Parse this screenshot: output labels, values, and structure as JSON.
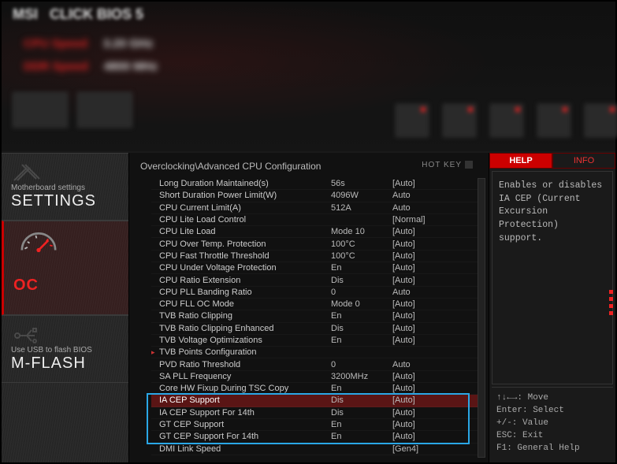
{
  "breadcrumb": "Overclocking\\Advanced CPU Configuration",
  "hotkey_label": "HOT KEY",
  "leftnav": {
    "settings": {
      "sub": "Motherboard settings",
      "title": "SETTINGS"
    },
    "oc": {
      "title": "OC"
    },
    "mflash": {
      "sub": "Use USB to flash BIOS",
      "title": "M-FLASH"
    }
  },
  "rows": [
    {
      "name": "Long Duration Maintained(s)",
      "val": "56s",
      "opt": "[Auto]",
      "arrow": false
    },
    {
      "name": "Short Duration Power Limit(W)",
      "val": "4096W",
      "opt": "Auto",
      "arrow": false
    },
    {
      "name": "CPU Current Limit(A)",
      "val": "512A",
      "opt": "Auto",
      "arrow": false
    },
    {
      "name": "CPU Lite Load Control",
      "val": "",
      "opt": "[Normal]",
      "arrow": false
    },
    {
      "name": "CPU Lite Load",
      "val": "Mode 10",
      "opt": "[Auto]",
      "arrow": false
    },
    {
      "name": "CPU Over Temp. Protection",
      "val": "100°C",
      "opt": "[Auto]",
      "arrow": false
    },
    {
      "name": "CPU Fast Throttle Threshold",
      "val": "100°C",
      "opt": "[Auto]",
      "arrow": false
    },
    {
      "name": "CPU Under Voltage Protection",
      "val": "En",
      "opt": "[Auto]",
      "arrow": false
    },
    {
      "name": "CPU Ratio Extension",
      "val": "Dis",
      "opt": "[Auto]",
      "arrow": false
    },
    {
      "name": "CPU PLL Banding Ratio",
      "val": "0",
      "opt": "Auto",
      "arrow": false
    },
    {
      "name": "CPU FLL OC Mode",
      "val": "Mode 0",
      "opt": "[Auto]",
      "arrow": false
    },
    {
      "name": "TVB Ratio Clipping",
      "val": "En",
      "opt": "[Auto]",
      "arrow": false
    },
    {
      "name": "TVB Ratio Clipping Enhanced",
      "val": "Dis",
      "opt": "[Auto]",
      "arrow": false
    },
    {
      "name": "TVB Voltage Optimizations",
      "val": "En",
      "opt": "[Auto]",
      "arrow": false
    },
    {
      "name": "TVB Points Configuration",
      "val": "",
      "opt": "",
      "arrow": true
    },
    {
      "name": "PVD Ratio Threshold",
      "val": "0",
      "opt": "Auto",
      "arrow": false
    },
    {
      "name": "SA PLL Frequency",
      "val": "3200MHz",
      "opt": "[Auto]",
      "arrow": false
    },
    {
      "name": "Core HW Fixup During TSC Copy",
      "val": "En",
      "opt": "[Auto]",
      "arrow": false
    },
    {
      "name": "IA CEP Support",
      "val": "Dis",
      "opt": "[Auto]",
      "arrow": false,
      "selected": true
    },
    {
      "name": "IA CEP Support For 14th",
      "val": "Dis",
      "opt": "[Auto]",
      "arrow": false
    },
    {
      "name": "GT CEP Support",
      "val": "En",
      "opt": "[Auto]",
      "arrow": false
    },
    {
      "name": "GT CEP Support For 14th",
      "val": "En",
      "opt": "[Auto]",
      "arrow": false
    },
    {
      "name": "DMI Link Speed",
      "val": "",
      "opt": "[Gen4]",
      "arrow": false
    }
  ],
  "highlight": {
    "first_index": 18,
    "last_index": 21
  },
  "tabs": {
    "active": "HELP",
    "inactive": "INFO"
  },
  "help_text": "Enables or disables IA CEP (Current Excursion Protection) support.",
  "hints": {
    "l1": "↑↓←→: Move",
    "l2": "Enter: Select",
    "l3": "+/-: Value",
    "l4": "ESC: Exit",
    "l5": "F1: General Help"
  },
  "colors": {
    "accent": "#c00",
    "highlight_box": "#2aa7e6",
    "selected_row": "#5a1515",
    "bg": "#111"
  }
}
